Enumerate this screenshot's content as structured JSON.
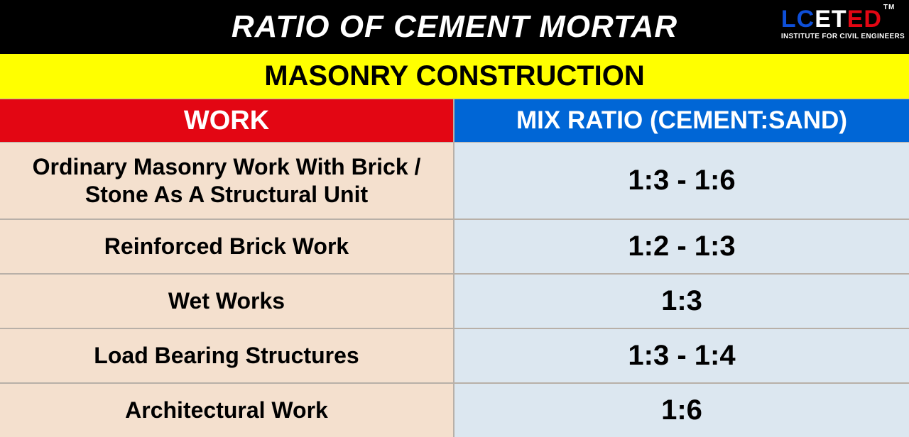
{
  "header": {
    "title": "RATIO OF CEMENT MORTAR",
    "subtitle": "MASONRY CONSTRUCTION"
  },
  "logo": {
    "parts": [
      {
        "text": "LC",
        "color": "#0e4fd8"
      },
      {
        "text": "ET",
        "color": "#ffffff"
      },
      {
        "text": "ED",
        "color": "#e30613"
      }
    ],
    "tm": "TM",
    "tagline": "INSTITUTE FOR CIVIL ENGINEERS"
  },
  "columns": {
    "work": "WORK",
    "ratio": "MIX RATIO (CEMENT:SAND)"
  },
  "rows": [
    {
      "work": "Ordinary Masonry Work With Brick / Stone As A Structural Unit",
      "ratio": "1:3 - 1:6",
      "tall": true
    },
    {
      "work": "Reinforced Brick Work",
      "ratio": "1:2 - 1:3",
      "tall": false
    },
    {
      "work": "Wet Works",
      "ratio": "1:3",
      "tall": false
    },
    {
      "work": "Load Bearing Structures",
      "ratio": "1:3 - 1:4",
      "tall": false
    },
    {
      "work": "Architectural Work",
      "ratio": "1:6",
      "tall": false
    }
  ],
  "style": {
    "header_bg": "#000000",
    "subheader_bg": "#ffff00",
    "work_header_bg": "#e30613",
    "ratio_header_bg": "#0066d6",
    "work_cell_bg": "#f4e0ce",
    "ratio_cell_bg": "#dce7f0",
    "border_color": "#b8b0a8",
    "header_title_fontsize": 44,
    "subheader_fontsize": 40,
    "colhead_fontsize": 38,
    "cell_work_fontsize": 32,
    "cell_ratio_fontsize": 40
  }
}
